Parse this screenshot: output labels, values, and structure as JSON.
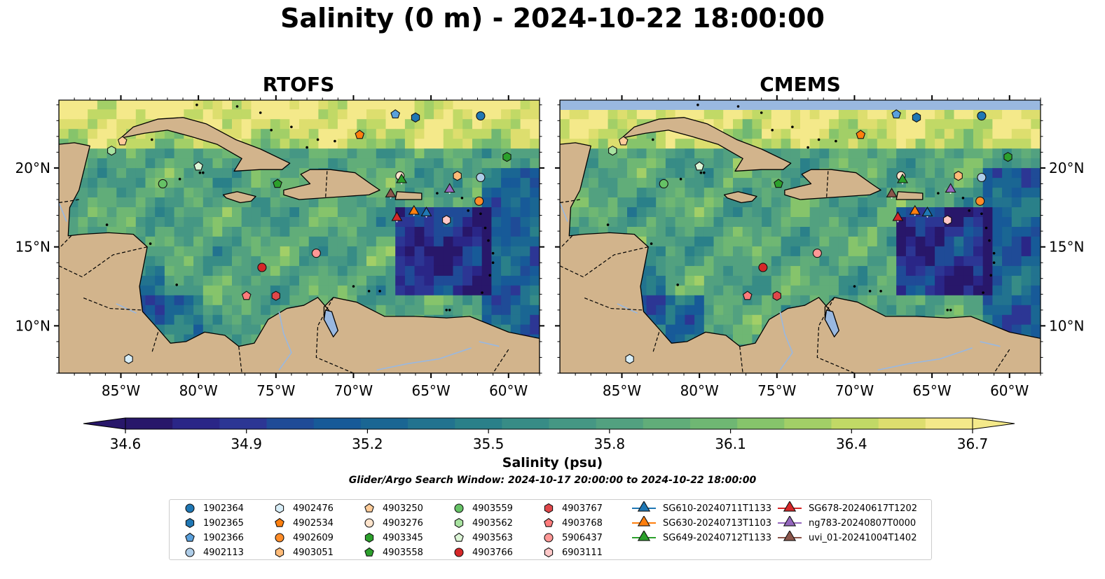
{
  "title": "Salinity (0 m) - 2024-10-22 18:00:00",
  "panels": [
    {
      "title": "RTOFS"
    },
    {
      "title": "CMEMS"
    }
  ],
  "axes": {
    "lon_ticks": [
      "85°W",
      "80°W",
      "75°W",
      "70°W",
      "65°W",
      "60°W"
    ],
    "lat_ticks": [
      "20°N",
      "15°N",
      "10°N"
    ]
  },
  "colorbar": {
    "label": "Salinity (psu)",
    "ticks": [
      "34.6",
      "34.9",
      "35.2",
      "35.5",
      "35.8",
      "36.1",
      "36.4",
      "36.7"
    ],
    "range": [
      34.6,
      36.7
    ]
  },
  "search_window": "Glider/Argo Search Window: 2024-10-17 20:00:00 to 2024-10-22 18:00:00",
  "colors": {
    "land": "#d2b48c",
    "lake": "#99b8e0",
    "ocean_low": "#2a1a66",
    "ocean_high": "#f8ec8a"
  },
  "legend": [
    {
      "label": "1902364",
      "marker": "circle",
      "color": "#1f77b4"
    },
    {
      "label": "1902365",
      "marker": "hexagon",
      "color": "#1f77b4"
    },
    {
      "label": "1902366",
      "marker": "pentagon",
      "color": "#5aa0dc"
    },
    {
      "label": "4902113",
      "marker": "circle",
      "color": "#aecde8"
    },
    {
      "label": "4902476",
      "marker": "hexagon",
      "color": "#d8eef8"
    },
    {
      "label": "4902534",
      "marker": "pentagon",
      "color": "#ff7f0e"
    },
    {
      "label": "4902609",
      "marker": "circle",
      "color": "#ff8c28"
    },
    {
      "label": "4903051",
      "marker": "hexagon",
      "color": "#ffbb78"
    },
    {
      "label": "4903250",
      "marker": "pentagon",
      "color": "#ffcc99"
    },
    {
      "label": "4903276",
      "marker": "circle",
      "color": "#ffe4cc"
    },
    {
      "label": "4903345",
      "marker": "hexagon",
      "color": "#2ca02c"
    },
    {
      "label": "4903558",
      "marker": "pentagon",
      "color": "#2ca02c"
    },
    {
      "label": "4903559",
      "marker": "circle",
      "color": "#66c266"
    },
    {
      "label": "4903562",
      "marker": "hexagon",
      "color": "#a8e2a0"
    },
    {
      "label": "4903563",
      "marker": "pentagon",
      "color": "#dcf5d6"
    },
    {
      "label": "4903766",
      "marker": "circle",
      "color": "#d62728"
    },
    {
      "label": "4903767",
      "marker": "hexagon",
      "color": "#e0474a"
    },
    {
      "label": "4903768",
      "marker": "pentagon",
      "color": "#ff7b7b"
    },
    {
      "label": "5906437",
      "marker": "circle",
      "color": "#ff9896"
    },
    {
      "label": "6903111",
      "marker": "hexagon",
      "color": "#ffc8c8"
    },
    {
      "label": "SG610-20240711T1133",
      "marker": "triangle",
      "color": "#1f77b4"
    },
    {
      "label": "SG630-20240713T1103",
      "marker": "triangle",
      "color": "#ff7f0e"
    },
    {
      "label": "SG649-20240712T1133",
      "marker": "triangle",
      "color": "#2ca02c"
    },
    {
      "label": "SG678-20240617T1202",
      "marker": "triangle",
      "color": "#d62728"
    },
    {
      "label": "ng783-20240807T0000",
      "marker": "triangle",
      "color": "#9467bd"
    },
    {
      "label": "uvi_01-20241004T1402",
      "marker": "triangle",
      "color": "#8c564b"
    }
  ],
  "observations": [
    {
      "id": "1902364",
      "lon": -61.8,
      "lat": 23.3
    },
    {
      "id": "1902365",
      "lon": -66.0,
      "lat": 23.2
    },
    {
      "id": "1902366",
      "lon": -67.3,
      "lat": 23.4
    },
    {
      "id": "4902113",
      "lon": -61.8,
      "lat": 19.4
    },
    {
      "id": "4902476",
      "lon": -84.5,
      "lat": 7.9
    },
    {
      "id": "4902534",
      "lon": -69.6,
      "lat": 22.1
    },
    {
      "id": "4902609",
      "lon": -61.9,
      "lat": 17.9
    },
    {
      "id": "4903051",
      "lon": -63.3,
      "lat": 19.5
    },
    {
      "id": "4903250",
      "lon": -84.9,
      "lat": 21.7
    },
    {
      "id": "4903276",
      "lon": -67.0,
      "lat": 19.5
    },
    {
      "id": "4903345",
      "lon": -60.1,
      "lat": 20.7
    },
    {
      "id": "4903558",
      "lon": -74.9,
      "lat": 19.0
    },
    {
      "id": "4903559",
      "lon": -82.3,
      "lat": 19.0
    },
    {
      "id": "4903562",
      "lon": -85.6,
      "lat": 21.1
    },
    {
      "id": "4903563",
      "lon": -80.0,
      "lat": 20.1
    },
    {
      "id": "4903766",
      "lon": -75.9,
      "lat": 13.7
    },
    {
      "id": "4903767",
      "lon": -75.0,
      "lat": 11.9
    },
    {
      "id": "4903768",
      "lon": -76.9,
      "lat": 11.9
    },
    {
      "id": "5906437",
      "lon": -72.4,
      "lat": 14.6
    },
    {
      "id": "6903111",
      "lon": -64.0,
      "lat": 16.7
    },
    {
      "id": "SG610-20240711T1133",
      "lon": -65.3,
      "lat": 17.2
    },
    {
      "id": "SG630-20240713T1103",
      "lon": -66.1,
      "lat": 17.3
    },
    {
      "id": "SG649-20240712T1133",
      "lon": -66.9,
      "lat": 19.3
    },
    {
      "id": "SG678-20240617T1202",
      "lon": -67.2,
      "lat": 16.9
    },
    {
      "id": "ng783-20240807T0000",
      "lon": -63.8,
      "lat": 18.7
    },
    {
      "id": "uvi_01-20241004T1402",
      "lon": -67.6,
      "lat": 18.4
    }
  ]
}
